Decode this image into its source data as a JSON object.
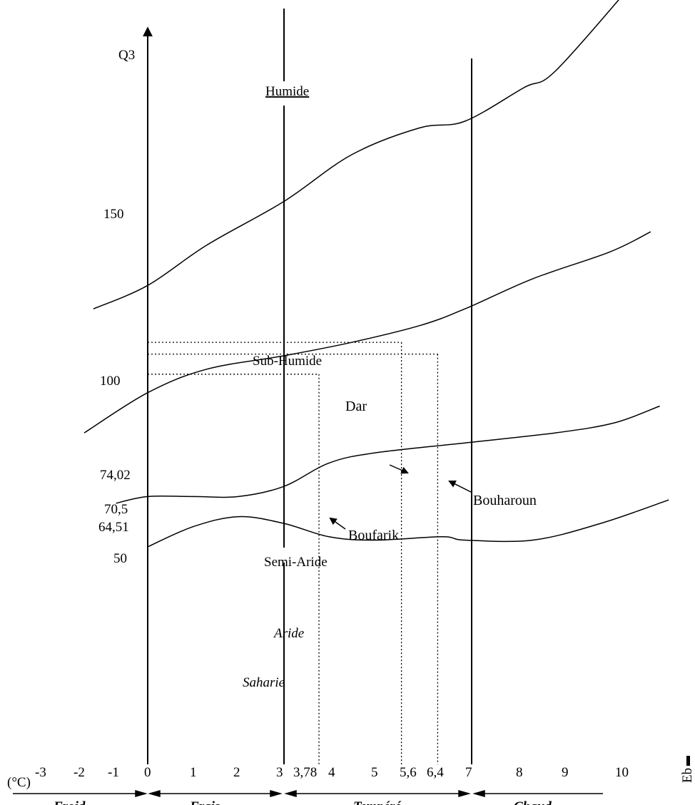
{
  "chart_data": {
    "type": "line",
    "title": "",
    "ylabel": "Q3",
    "xlabel": "m (°C)",
    "xlabel_visible": "(°C)",
    "right_label": "Eb",
    "x_ticks": [
      "-3",
      "-2",
      "-1",
      "0",
      "1",
      "2",
      "3",
      "3,78",
      "4",
      "5",
      "5,6",
      "6,4",
      "7",
      "8",
      "9",
      "10"
    ],
    "y_ticks": [
      "150",
      "100",
      "50"
    ],
    "y_extra_labels": [
      "74,02",
      "70,5",
      "64,51"
    ],
    "zones": {
      "humide": "Humide",
      "sub_humide": "Sub-Humide",
      "semi_aride": "Semi-Aride",
      "aride": "Aride",
      "saharien": "Saharie"
    },
    "annotations": {
      "dar": "Dar",
      "boufarik": "Boufarik",
      "bouharoun": "Bouharoun"
    },
    "bands": [
      "Froid",
      "Frais",
      "Tempéré",
      "Chaud"
    ],
    "stations": [
      {
        "name": "Boufarik",
        "m": 3.78,
        "q3": 64.51
      },
      {
        "name": "Dar",
        "m": 5.6,
        "q3": 74.02
      },
      {
        "name": "Bouharoun",
        "m": 6.4,
        "q3": 70.5
      }
    ],
    "boundaries": [
      {
        "name": "Humide / Sub-Humide",
        "points": [
          [
            -1.2,
            84
          ],
          [
            0,
            91
          ],
          [
            1.3,
            103
          ],
          [
            3,
            116
          ],
          [
            4.5,
            130
          ],
          [
            6,
            138
          ],
          [
            7,
            140
          ],
          [
            8.3,
            150
          ],
          [
            9,
            155
          ],
          [
            10.7,
            181
          ]
        ]
      },
      {
        "name": "Sub-Humide / Semi-Aride",
        "points": [
          [
            -1.4,
            47
          ],
          [
            0,
            59
          ],
          [
            1.3,
            66
          ],
          [
            3,
            70
          ],
          [
            4.5,
            74
          ],
          [
            6,
            79
          ],
          [
            7,
            84
          ],
          [
            8.5,
            93
          ],
          [
            10.2,
            101
          ],
          [
            11.1,
            107
          ]
        ]
      },
      {
        "name": "Semi-Aride / Aride",
        "points": [
          [
            -0.7,
            26
          ],
          [
            0,
            28
          ],
          [
            1,
            28
          ],
          [
            2,
            28
          ],
          [
            3,
            31
          ],
          [
            4,
            38
          ],
          [
            5,
            41
          ],
          [
            7,
            44
          ],
          [
            9,
            47
          ],
          [
            10.3,
            50
          ],
          [
            11.3,
            55
          ]
        ]
      },
      {
        "name": "Aride / Saharien",
        "points": [
          [
            0,
            13
          ],
          [
            1,
            19
          ],
          [
            2,
            22
          ],
          [
            3,
            20
          ],
          [
            4,
            16
          ],
          [
            5,
            15
          ],
          [
            6.5,
            16
          ],
          [
            7,
            15
          ],
          [
            8.5,
            15
          ],
          [
            10,
            20
          ],
          [
            11.5,
            27
          ]
        ]
      }
    ],
    "verticals_m": [
      0,
      3,
      7
    ],
    "xlim": [
      -3,
      11.5
    ],
    "ylim": [
      0,
      180
    ],
    "grid": false
  }
}
